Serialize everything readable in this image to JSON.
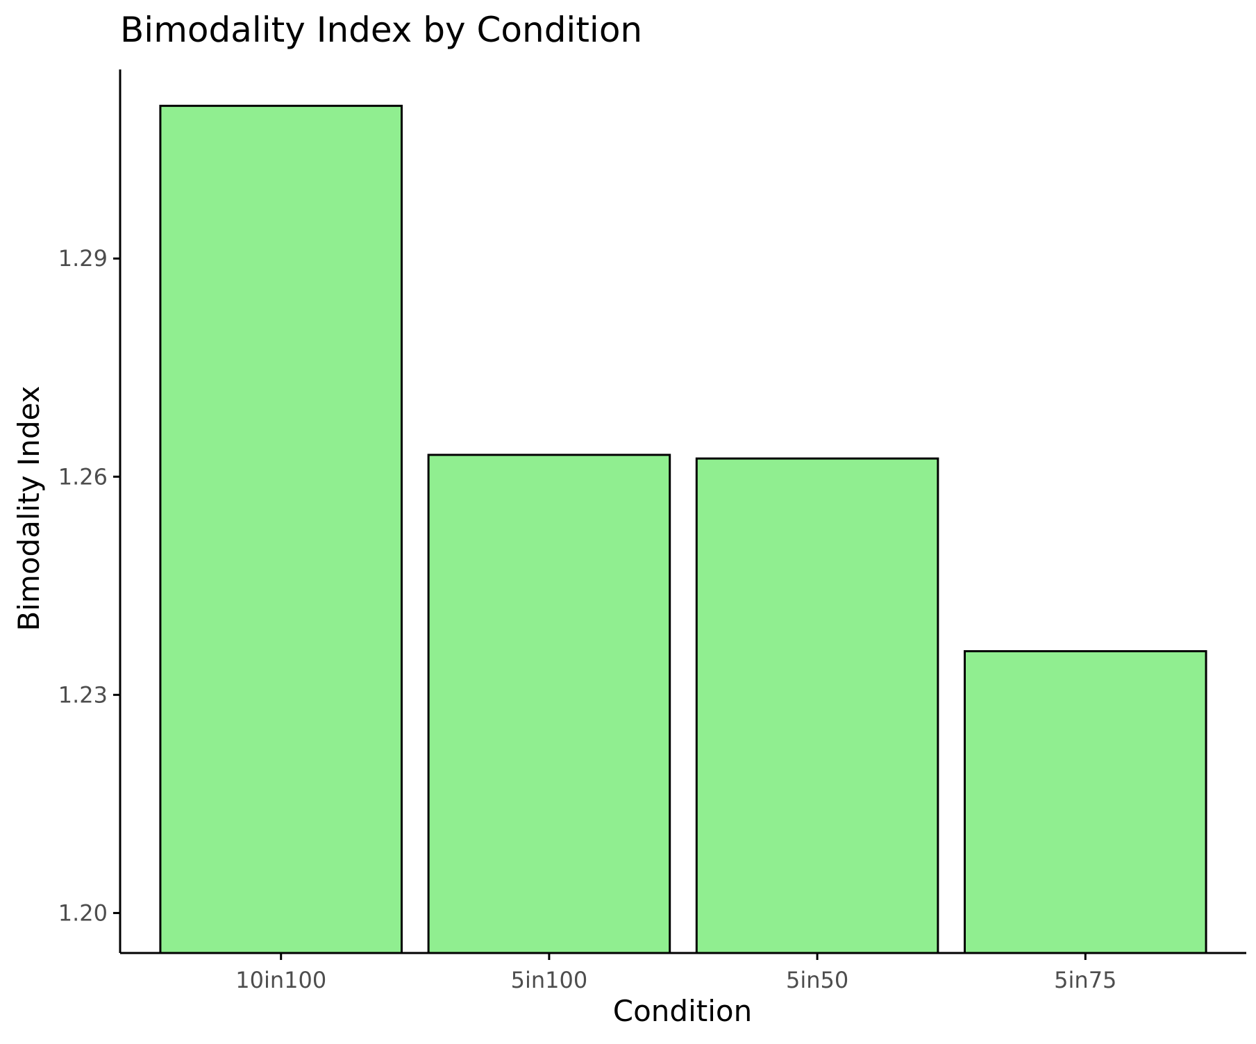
{
  "chart_data": {
    "type": "bar",
    "title": "Bimodality Index by Condition",
    "xlabel": "Condition",
    "ylabel": "Bimodality Index",
    "categories": [
      "10in100",
      "5in100",
      "5in50",
      "5in75"
    ],
    "values": [
      1.311,
      1.263,
      1.2625,
      1.236
    ],
    "ylim": [
      1.1945,
      1.316
    ],
    "yticks": [
      1.2,
      1.23,
      1.26,
      1.29
    ],
    "ytick_labels": [
      "1.20",
      "1.23",
      "1.26",
      "1.29"
    ],
    "grid": false,
    "colors": {
      "bar_fill": "#90EE90",
      "bar_stroke": "#000000",
      "axis": "#000000",
      "tick_text": "#4d4d4d"
    }
  }
}
